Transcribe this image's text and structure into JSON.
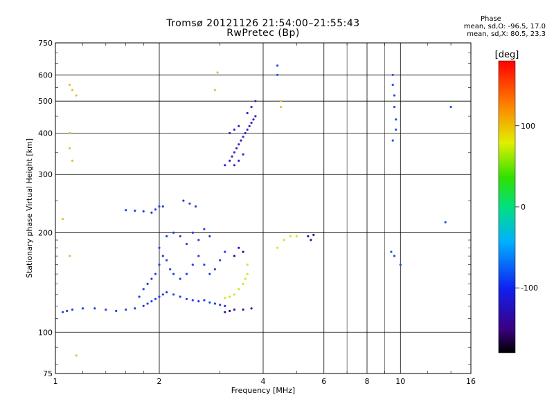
{
  "header": {
    "title_line1": "Tromsø 20121126 21:54:00–21:55:43",
    "title_line2": "RwPretec (Bp)",
    "phase_label": "Phase",
    "phase_line1": "mean, sd,O: -96.5, 17.0",
    "phase_line2": "mean, sd,X: 80.5, 23.3"
  },
  "colorbar": {
    "title": "[deg]",
    "ticks": [
      "100",
      "0",
      "-100"
    ],
    "tick_values": [
      100,
      0,
      -100
    ],
    "range": [
      -180,
      180
    ]
  },
  "chart_data": {
    "type": "scatter",
    "title": "Tromsø 20121126 21:54:00–21:55:43 RwPretec (Bp)",
    "xlabel": "Frequency [MHz]",
    "ylabel": "Stationary phase Virtual Height [km]",
    "x_scale": "log",
    "y_scale": "log",
    "xlim": [
      1,
      16
    ],
    "ylim": [
      75,
      750
    ],
    "x_ticks": [
      "1",
      "2",
      "4",
      "6",
      "8",
      "10",
      "16"
    ],
    "x_tick_values": [
      1,
      2,
      4,
      6,
      8,
      10,
      16
    ],
    "y_ticks": [
      "750",
      "600",
      "500",
      "400",
      "300",
      "200",
      "100",
      "75"
    ],
    "y_tick_values": [
      750,
      600,
      500,
      400,
      300,
      200,
      100,
      75
    ],
    "grid": true,
    "colorbar": "phase [deg]",
    "series": [
      {
        "trace": "lower-blue-layer",
        "color": "#2040e0",
        "points": [
          [
            1.05,
            115
          ],
          [
            1.08,
            116
          ],
          [
            1.12,
            117
          ],
          [
            1.2,
            118
          ],
          [
            1.3,
            118
          ],
          [
            1.4,
            117
          ],
          [
            1.5,
            116
          ],
          [
            1.6,
            117
          ],
          [
            1.7,
            118
          ],
          [
            1.8,
            120
          ],
          [
            1.85,
            122
          ],
          [
            1.9,
            124
          ],
          [
            1.95,
            126
          ],
          [
            2.0,
            128
          ],
          [
            2.05,
            130
          ],
          [
            2.1,
            132
          ],
          [
            2.2,
            130
          ],
          [
            2.3,
            128
          ],
          [
            2.4,
            126
          ],
          [
            2.5,
            125
          ],
          [
            2.6,
            124
          ],
          [
            2.7,
            125
          ],
          [
            2.8,
            123
          ],
          [
            2.9,
            122
          ],
          [
            3.0,
            121
          ],
          [
            3.1,
            120
          ],
          [
            1.75,
            128
          ],
          [
            1.8,
            135
          ],
          [
            1.85,
            140
          ],
          [
            1.9,
            145
          ],
          [
            1.95,
            150
          ],
          [
            2.0,
            160
          ],
          [
            2.05,
            170
          ],
          [
            2.1,
            165
          ],
          [
            2.15,
            155
          ],
          [
            2.2,
            150
          ],
          [
            2.3,
            145
          ],
          [
            2.4,
            150
          ],
          [
            2.5,
            160
          ],
          [
            2.6,
            170
          ],
          [
            2.7,
            160
          ],
          [
            2.8,
            150
          ],
          [
            2.9,
            155
          ],
          [
            3.0,
            165
          ],
          [
            3.1,
            175
          ],
          [
            2.0,
            180
          ],
          [
            2.1,
            195
          ],
          [
            2.2,
            200
          ],
          [
            2.3,
            195
          ],
          [
            2.4,
            185
          ],
          [
            2.5,
            200
          ],
          [
            2.6,
            190
          ],
          [
            2.7,
            205
          ],
          [
            2.8,
            195
          ],
          [
            2.0,
            240
          ],
          [
            2.05,
            240
          ],
          [
            1.95,
            235
          ],
          [
            1.9,
            230
          ],
          [
            1.8,
            232
          ],
          [
            1.7,
            233
          ],
          [
            1.6,
            234
          ],
          [
            2.35,
            250
          ],
          [
            2.45,
            245
          ],
          [
            2.55,
            240
          ]
        ]
      },
      {
        "trace": "upper-violet-layer",
        "color": "#4020c0",
        "points": [
          [
            3.1,
            320
          ],
          [
            3.2,
            330
          ],
          [
            3.25,
            340
          ],
          [
            3.3,
            350
          ],
          [
            3.35,
            360
          ],
          [
            3.4,
            370
          ],
          [
            3.45,
            380
          ],
          [
            3.5,
            390
          ],
          [
            3.55,
            400
          ],
          [
            3.6,
            410
          ],
          [
            3.65,
            420
          ],
          [
            3.7,
            430
          ],
          [
            3.75,
            440
          ],
          [
            3.8,
            450
          ],
          [
            3.3,
            320
          ],
          [
            3.4,
            330
          ],
          [
            3.5,
            345
          ],
          [
            3.2,
            400
          ],
          [
            3.3,
            410
          ],
          [
            3.4,
            420
          ],
          [
            3.6,
            460
          ],
          [
            3.7,
            480
          ],
          [
            3.8,
            500
          ]
        ]
      },
      {
        "trace": "yellow-green-cluster",
        "color": "#c0f020",
        "points": [
          [
            3.1,
            127
          ],
          [
            3.2,
            128
          ],
          [
            3.3,
            130
          ],
          [
            3.4,
            135
          ],
          [
            3.5,
            140
          ],
          [
            3.55,
            145
          ],
          [
            3.6,
            150
          ],
          [
            3.6,
            160
          ],
          [
            4.6,
            190
          ],
          [
            4.8,
            195
          ],
          [
            5.0,
            195
          ],
          [
            4.4,
            180
          ]
        ]
      },
      {
        "trace": "purple-deep",
        "color": "#3010a0",
        "points": [
          [
            3.1,
            115
          ],
          [
            3.2,
            116
          ],
          [
            3.3,
            117
          ],
          [
            3.5,
            117
          ],
          [
            3.7,
            118
          ],
          [
            3.3,
            170
          ],
          [
            3.4,
            180
          ],
          [
            3.5,
            175
          ],
          [
            5.4,
            195
          ],
          [
            5.6,
            197
          ],
          [
            5.5,
            190
          ]
        ]
      },
      {
        "trace": "scattered-low-freq",
        "color": "#e0c040",
        "points": [
          [
            1.12,
            540
          ],
          [
            1.15,
            520
          ],
          [
            1.1,
            400
          ],
          [
            1.1,
            360
          ],
          [
            1.12,
            330
          ],
          [
            1.1,
            560
          ],
          [
            1.05,
            220
          ],
          [
            1.1,
            170
          ],
          [
            1.15,
            85
          ],
          [
            2.9,
            540
          ],
          [
            2.95,
            610
          ],
          [
            4.5,
            480
          ],
          [
            4.5,
            500
          ]
        ]
      },
      {
        "trace": "right-side-points",
        "color": "#2050e0",
        "points": [
          [
            9.5,
            600
          ],
          [
            9.5,
            560
          ],
          [
            9.6,
            520
          ],
          [
            9.6,
            480
          ],
          [
            9.7,
            440
          ],
          [
            9.7,
            410
          ],
          [
            9.5,
            380
          ],
          [
            9.4,
            175
          ],
          [
            9.6,
            170
          ],
          [
            10,
            160
          ],
          [
            13.5,
            215
          ],
          [
            14,
            480
          ],
          [
            4.4,
            640
          ],
          [
            4.4,
            600
          ]
        ]
      }
    ]
  }
}
